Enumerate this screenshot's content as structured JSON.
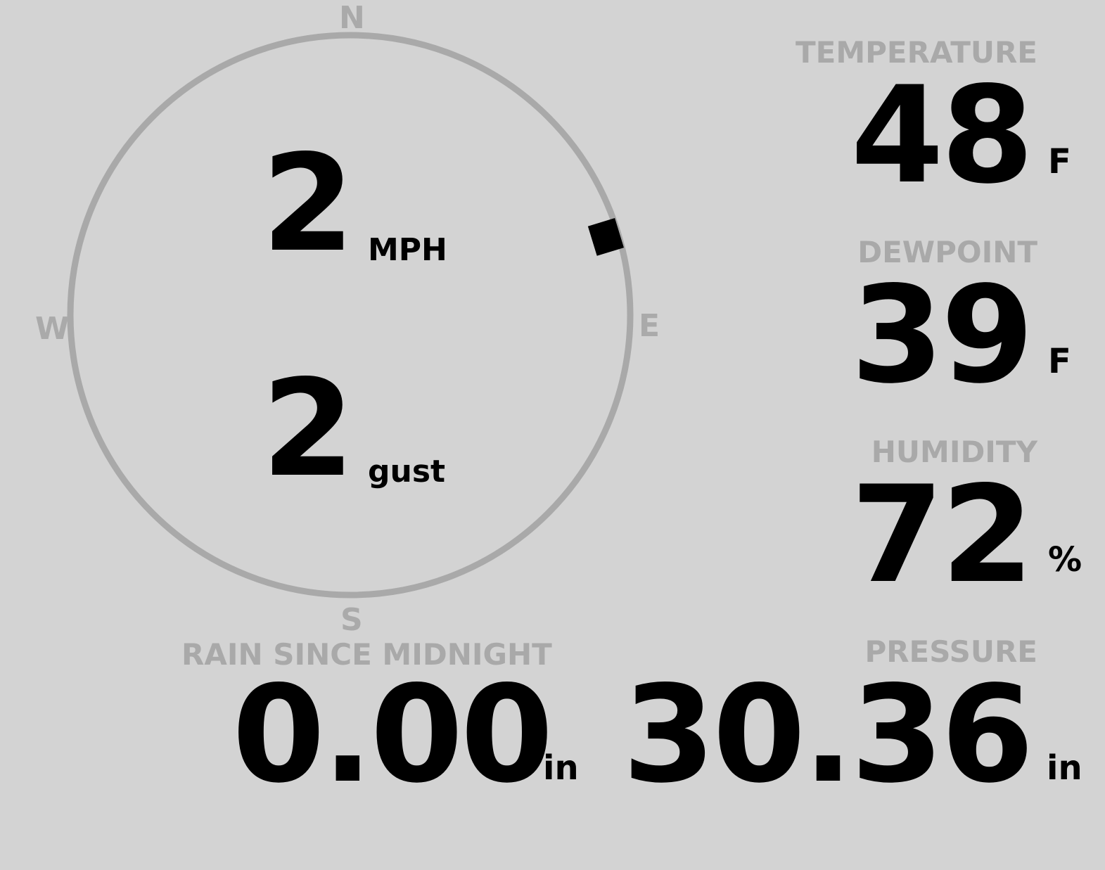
{
  "wind": {
    "compass": {
      "north": "N",
      "east": "E",
      "south": "S",
      "west": "W"
    },
    "direction_degrees": 73,
    "speed": "2",
    "speed_unit": "MPH",
    "gust": "2",
    "gust_unit": "gust"
  },
  "temperature": {
    "label": "TEMPERATURE",
    "value": "48",
    "unit": "F"
  },
  "dewpoint": {
    "label": "DEWPOINT",
    "value": "39",
    "unit": "F"
  },
  "humidity": {
    "label": "HUMIDITY",
    "value": "72",
    "unit": "%"
  },
  "rain": {
    "label": "RAIN SINCE MIDNIGHT",
    "value": "0.00",
    "unit": "in"
  },
  "pressure": {
    "label": "PRESSURE",
    "value": "30.36",
    "unit": "in"
  },
  "colors": {
    "background": "#d3d3d3",
    "muted": "#a9a9a9",
    "value": "#000000"
  }
}
